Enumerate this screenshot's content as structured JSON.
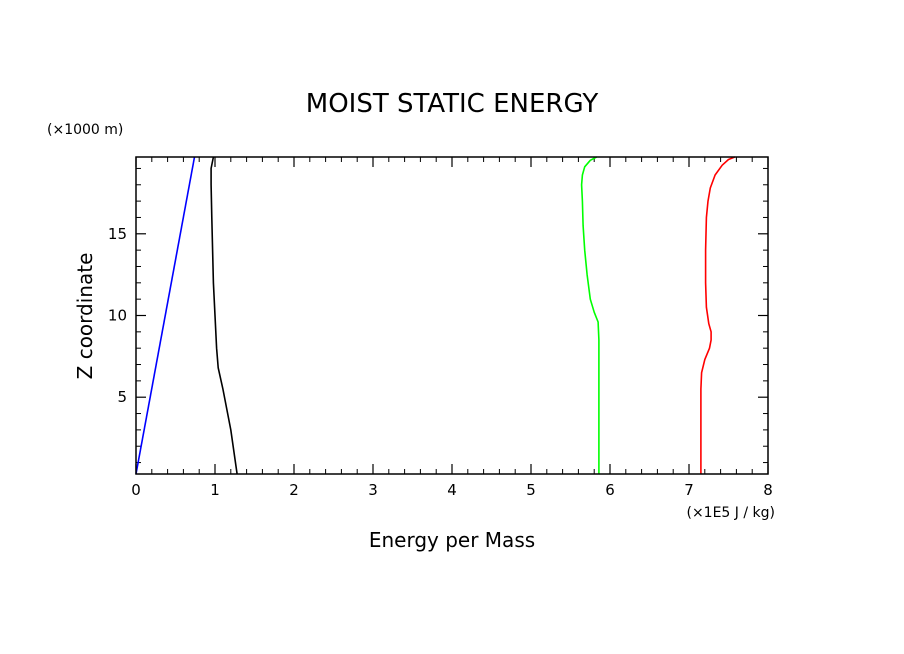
{
  "chart_data": {
    "type": "line",
    "title": "MOIST STATIC ENERGY",
    "xlabel": "Energy per Mass",
    "ylabel": "Z coordinate",
    "x_unit": "(×1E5 J / kg)",
    "y_unit": "(×1000 m)",
    "xlim": [
      0,
      8
    ],
    "ylim": [
      0.3,
      19.7
    ],
    "x_ticks": [
      0,
      1,
      2,
      3,
      4,
      5,
      6,
      7,
      8
    ],
    "y_ticks": [
      5,
      10,
      15
    ],
    "grid": false,
    "series": [
      {
        "name": "blue",
        "color": "#0000ff",
        "points": [
          [
            0.0,
            0.3
          ],
          [
            0.74,
            19.7
          ]
        ]
      },
      {
        "name": "black",
        "color": "#000000",
        "points": [
          [
            1.28,
            0.3
          ],
          [
            1.2,
            3.0
          ],
          [
            1.1,
            5.5
          ],
          [
            1.04,
            6.8
          ],
          [
            1.02,
            8.0
          ],
          [
            1.0,
            10.0
          ],
          [
            0.98,
            12.0
          ],
          [
            0.97,
            14.0
          ],
          [
            0.96,
            16.0
          ],
          [
            0.95,
            18.0
          ],
          [
            0.95,
            19.0
          ],
          [
            0.98,
            19.7
          ]
        ]
      },
      {
        "name": "green",
        "color": "#00ff00",
        "points": [
          [
            5.86,
            0.3
          ],
          [
            5.86,
            3.0
          ],
          [
            5.86,
            6.0
          ],
          [
            5.86,
            8.5
          ],
          [
            5.85,
            9.6
          ],
          [
            5.8,
            10.2
          ],
          [
            5.75,
            11.0
          ],
          [
            5.71,
            12.5
          ],
          [
            5.68,
            14.0
          ],
          [
            5.66,
            15.5
          ],
          [
            5.65,
            17.0
          ],
          [
            5.64,
            18.0
          ],
          [
            5.65,
            18.6
          ],
          [
            5.68,
            19.1
          ],
          [
            5.75,
            19.5
          ],
          [
            5.83,
            19.7
          ]
        ]
      },
      {
        "name": "red",
        "color": "#ff0000",
        "points": [
          [
            7.15,
            0.3
          ],
          [
            7.15,
            3.0
          ],
          [
            7.15,
            5.5
          ],
          [
            7.16,
            6.5
          ],
          [
            7.2,
            7.3
          ],
          [
            7.26,
            8.0
          ],
          [
            7.28,
            8.5
          ],
          [
            7.28,
            9.0
          ],
          [
            7.25,
            9.5
          ],
          [
            7.22,
            10.5
          ],
          [
            7.21,
            12.0
          ],
          [
            7.21,
            14.0
          ],
          [
            7.22,
            16.0
          ],
          [
            7.24,
            17.0
          ],
          [
            7.27,
            17.8
          ],
          [
            7.33,
            18.6
          ],
          [
            7.42,
            19.2
          ],
          [
            7.5,
            19.55
          ],
          [
            7.58,
            19.7
          ]
        ]
      }
    ]
  }
}
